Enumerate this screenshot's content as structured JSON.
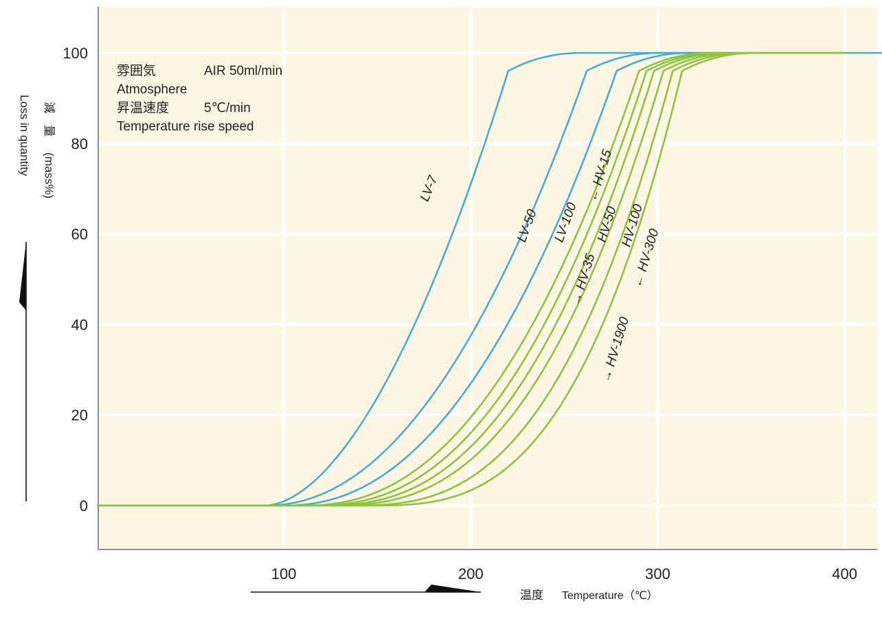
{
  "chart_data": {
    "type": "line",
    "title": "",
    "xlabel": "温度 Temperature（℃）",
    "ylabel": "減　量（mass%） Loss in quantity",
    "xlabel_jp": "温度",
    "xlabel_en": "Temperature（℃）",
    "ylabel_jp": "減　量",
    "ylabel_unit": "(mass%)",
    "ylabel_en": "Loss in quantity",
    "xlim": [
      0,
      420
    ],
    "ylim": [
      -10,
      110
    ],
    "xticks": [
      100,
      200,
      300,
      400
    ],
    "yticks": [
      0,
      20,
      40,
      60,
      80,
      100
    ],
    "grid": true,
    "background": "#fdf6e3",
    "colors": {
      "LV": "#45acd9",
      "HV": "#8cc43e"
    },
    "annotation": [
      [
        "雰囲気",
        "AIR 50ml/min"
      ],
      [
        "Atmosphere",
        ""
      ],
      [
        "昇温速度",
        "5℃/min"
      ],
      [
        "Temperature rise speed",
        ""
      ]
    ],
    "series": [
      {
        "name": "LV-7",
        "group": "LV",
        "t0": 90,
        "t1": 220,
        "p": 1.8
      },
      {
        "name": "LV-50",
        "group": "LV",
        "t0": 90,
        "t1": 262,
        "p": 2.1
      },
      {
        "name": "LV-100",
        "group": "LV",
        "t0": 100,
        "t1": 278,
        "p": 2.2
      },
      {
        "name": "HV-35",
        "group": "HV",
        "t0": 110,
        "t1": 290,
        "p": 2.3
      },
      {
        "name": "HV-15",
        "group": "HV",
        "t0": 115,
        "t1": 294,
        "p": 2.4
      },
      {
        "name": "HV-50",
        "group": "HV",
        "t0": 120,
        "t1": 298,
        "p": 2.5
      },
      {
        "name": "HV-100",
        "group": "HV",
        "t0": 125,
        "t1": 303,
        "p": 2.6
      },
      {
        "name": "HV-300",
        "group": "HV",
        "t0": 135,
        "t1": 308,
        "p": 2.8
      },
      {
        "name": "HV-1900",
        "group": "HV",
        "t0": 145,
        "t1": 313,
        "p": 3.0
      }
    ],
    "labels": [
      {
        "text": "LV-7",
        "x": 177,
        "y": 67,
        "angle": -68,
        "arrow": ""
      },
      {
        "text": "LV-50",
        "x": 229,
        "y": 58,
        "angle": -70,
        "arrow": ""
      },
      {
        "text": "LV-100",
        "x": 249,
        "y": 58,
        "angle": -70,
        "arrow": ""
      },
      {
        "text": "HV-35",
        "x": 258,
        "y": 44,
        "angle": -73,
        "arrow": "↓"
      },
      {
        "text": "HV-15",
        "x": 267,
        "y": 67,
        "angle": -73,
        "arrow": "↑"
      },
      {
        "text": "HV-50",
        "x": 272,
        "y": 58,
        "angle": -73,
        "arrow": ""
      },
      {
        "text": "HV-100",
        "x": 285,
        "y": 57,
        "angle": -73,
        "arrow": ""
      },
      {
        "text": "HV-300",
        "x": 291,
        "y": 48,
        "angle": -73,
        "arrow": "↑"
      },
      {
        "text": "HV-1900",
        "x": 274,
        "y": 27,
        "angle": -73,
        "arrow": "↓"
      }
    ]
  }
}
